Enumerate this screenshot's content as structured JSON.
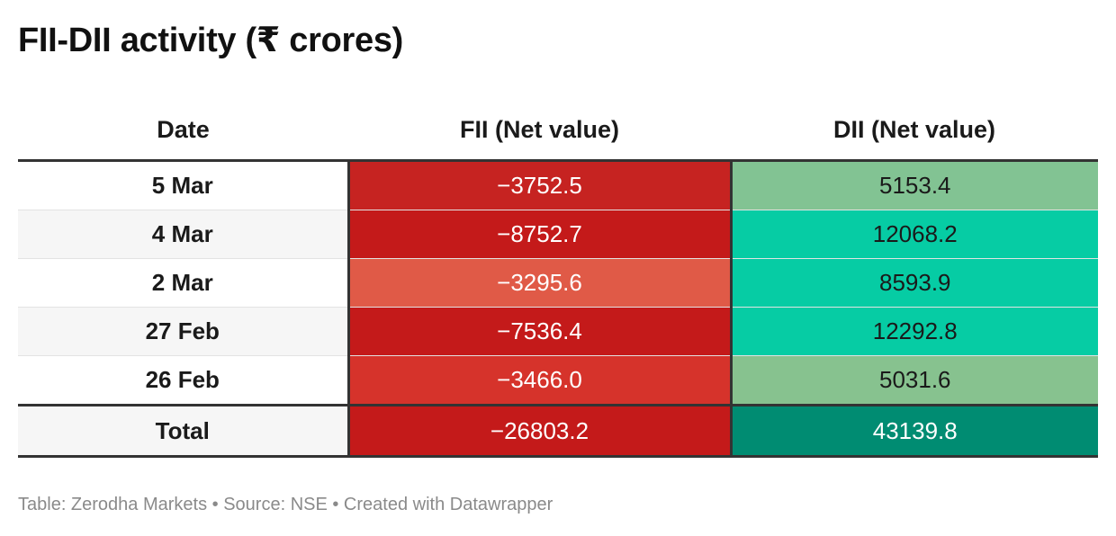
{
  "title": "FII-DII activity (₹ crores)",
  "chart_data": {
    "type": "table",
    "title": "FII-DII activity (₹ crores)",
    "columns": [
      "Date",
      "FII (Net value)",
      "DII (Net value)"
    ],
    "rows": [
      {
        "date": "5 Mar",
        "fii": "−3752.5",
        "dii": "5153.4",
        "fii_color": "#c62321",
        "dii_color": "#82c393",
        "fii_text": "#ffffff",
        "dii_text": "#1a1a1a"
      },
      {
        "date": "4 Mar",
        "fii": "−8752.7",
        "dii": "12068.2",
        "fii_color": "#c41a1a",
        "dii_color": "#06cca4",
        "fii_text": "#ffffff",
        "dii_text": "#1a1a1a"
      },
      {
        "date": "2 Mar",
        "fii": "−3295.6",
        "dii": "8593.9",
        "fii_color": "#e05a47",
        "dii_color": "#06cca4",
        "fii_text": "#ffffff",
        "dii_text": "#1a1a1a"
      },
      {
        "date": "27 Feb",
        "fii": "−7536.4",
        "dii": "12292.8",
        "fii_color": "#c41a1a",
        "dii_color": "#06cca4",
        "fii_text": "#ffffff",
        "dii_text": "#1a1a1a"
      },
      {
        "date": "26 Feb",
        "fii": "−3466.0",
        "dii": "5031.6",
        "fii_color": "#d6332b",
        "dii_color": "#87c28f",
        "fii_text": "#ffffff",
        "dii_text": "#1a1a1a"
      }
    ],
    "total": {
      "date": "Total",
      "fii": "−26803.2",
      "dii": "43139.8",
      "fii_color": "#c41a1a",
      "dii_color": "#008c72",
      "fii_text": "#ffffff",
      "dii_text": "#ffffff"
    }
  },
  "footer": "Table: Zerodha Markets • Source: NSE • Created with Datawrapper"
}
